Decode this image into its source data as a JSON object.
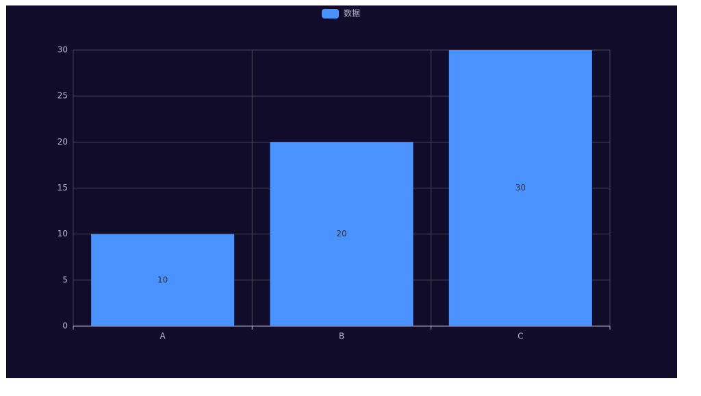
{
  "chart_data": {
    "type": "bar",
    "legend": "数据",
    "legend_position": "top",
    "categories": [
      "A",
      "B",
      "C"
    ],
    "values": [
      10,
      20,
      30
    ],
    "color": "#4992ff",
    "ylim": [
      0,
      30
    ],
    "yticks": [
      0,
      5,
      10,
      15,
      20,
      25,
      30
    ],
    "grid": true
  }
}
